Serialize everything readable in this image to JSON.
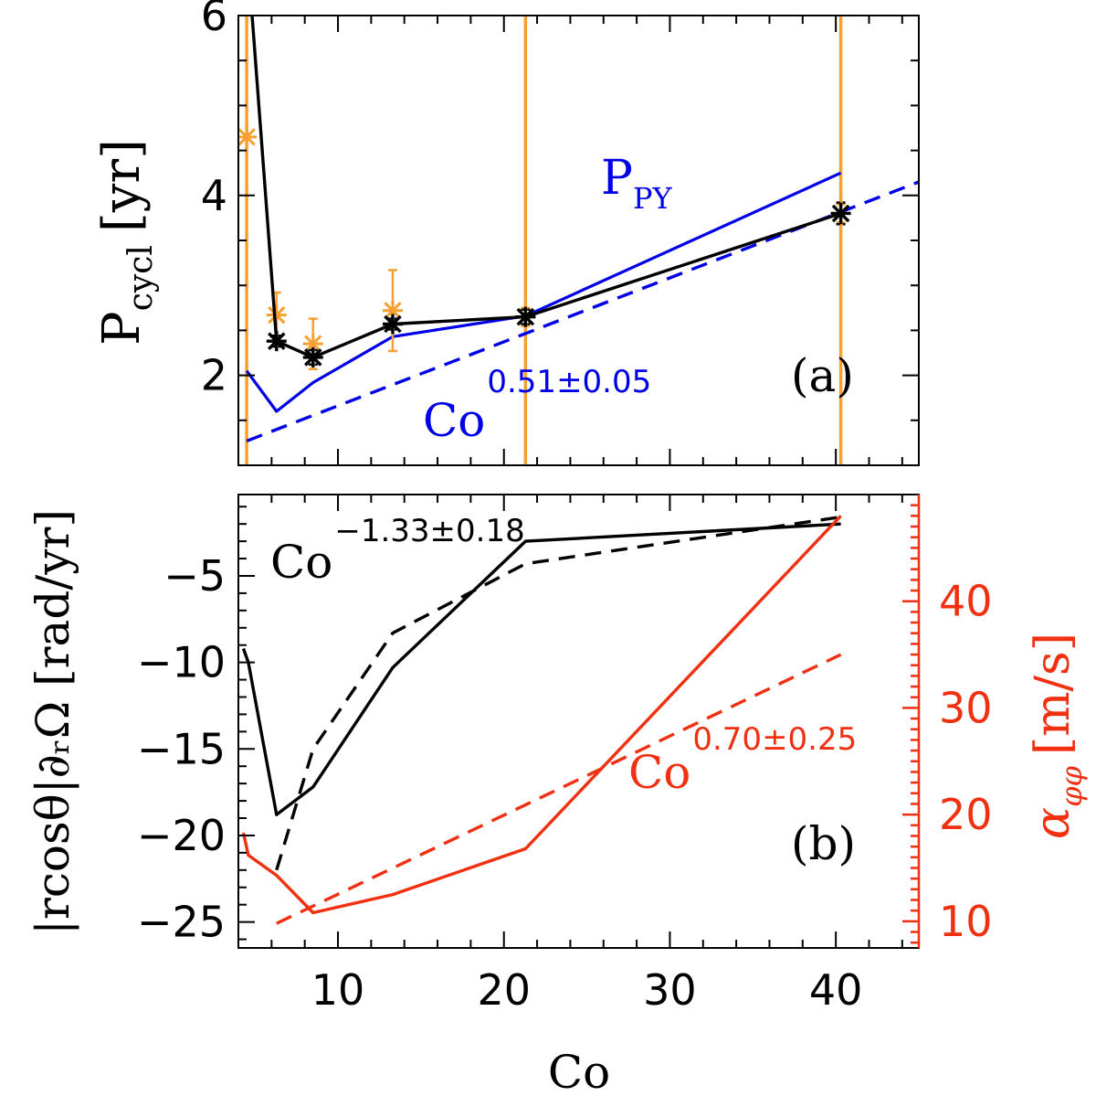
{
  "chart_data": [
    {
      "panel_label": "(a)",
      "type": "line",
      "ylabel_main": "P",
      "ylabel_sub": "cycl",
      "ylabel_unit": "[yr]",
      "xlim": [
        4,
        45
      ],
      "ylim": [
        1.0,
        6.0
      ],
      "yticks": [
        2,
        4,
        6
      ],
      "colors": {
        "black": "#000000",
        "blue": "#0000e6",
        "orange": "#f5a030"
      },
      "series": [
        {
          "name": "P_cycl (black)",
          "style": "solid-stars",
          "color": "#000000",
          "x": [
            4.5,
            6.3,
            8.5,
            13.3,
            21.3,
            40.3
          ],
          "y": [
            6.8,
            2.38,
            2.2,
            2.57,
            2.65,
            3.8
          ],
          "err": [
            0,
            0.06,
            0.08,
            0.06,
            0.08,
            0.12
          ],
          "markers_from_index": 1
        },
        {
          "name": "P_PY",
          "style": "solid",
          "color": "#0000e6",
          "x": [
            4.5,
            6.3,
            8.5,
            13.3,
            21.3,
            40.3
          ],
          "y": [
            2.05,
            1.6,
            1.92,
            2.43,
            2.66,
            4.25
          ]
        },
        {
          "name": "Co^0.51 fit",
          "style": "dashed",
          "color": "#0000e6",
          "x": [
            4.5,
            45
          ],
          "y": [
            1.27,
            4.15
          ]
        },
        {
          "name": "orange points",
          "style": "stars",
          "color": "#f5a030",
          "x": [
            4.5,
            6.3,
            8.5,
            13.3,
            21.3,
            40.3
          ],
          "y": [
            4.65,
            2.67,
            2.35,
            2.72,
            2.65,
            3.8
          ],
          "err": [
            0,
            0.25,
            0.28,
            0.45,
            0.1,
            0.1
          ]
        }
      ],
      "vertical_lines": {
        "color": "#f5a030",
        "x": [
          4.5,
          21.3,
          40.3
        ]
      },
      "annotations": [
        {
          "id": "ppy",
          "main": "P",
          "sub": "PY",
          "color": "#0000e6"
        },
        {
          "id": "fit_a",
          "base": "Co",
          "exponent": "0.51±0.05",
          "color": "#0000e6"
        }
      ]
    },
    {
      "panel_label": "(b)",
      "type": "line",
      "xlabel": "Co",
      "ylabel_left": "|rcosθ|∂ᵣΩ [rad/yr]",
      "ylabel_right_main": "α",
      "ylabel_right_sub": "φφ",
      "ylabel_right_unit": "[m/s]",
      "xlim": [
        4,
        45
      ],
      "xticks": [
        10,
        20,
        30,
        40
      ],
      "ylim_left": [
        -26.5,
        -0.3
      ],
      "yticks_left": [
        -5,
        -10,
        -15,
        -20,
        -25
      ],
      "ylim_right": [
        7.5,
        50
      ],
      "yticks_right": [
        10,
        20,
        30,
        40
      ],
      "colors": {
        "black": "#000000",
        "red": "#f03010"
      },
      "series": [
        {
          "name": "|rcosθ|∂rΩ",
          "axis": "left",
          "style": "solid",
          "color": "#000000",
          "x": [
            4.3,
            4.6,
            6.3,
            8.5,
            13.3,
            21.3,
            40.3
          ],
          "y": [
            -9.2,
            -10.0,
            -18.8,
            -17.2,
            -10.3,
            -3.0,
            -2.0
          ]
        },
        {
          "name": "Co^-1.33 fit",
          "axis": "left",
          "style": "dashed",
          "color": "#000000",
          "x": [
            6.3,
            8.5,
            13.3,
            21.3,
            40.3
          ],
          "y": [
            -22.0,
            -15.0,
            -8.3,
            -4.3,
            -1.6
          ]
        },
        {
          "name": "αφφ",
          "axis": "right",
          "style": "solid",
          "color": "#f03010",
          "x": [
            4.3,
            4.6,
            6.3,
            8.5,
            13.3,
            21.3,
            40.3
          ],
          "y": [
            18.3,
            16.2,
            14.3,
            10.8,
            12.5,
            16.8,
            48.0
          ]
        },
        {
          "name": "Co^0.70 fit",
          "axis": "right",
          "style": "dashed",
          "color": "#f03010",
          "x": [
            6.3,
            40.3
          ],
          "y": [
            9.8,
            35.0
          ]
        }
      ],
      "annotations": [
        {
          "id": "fit_b_black",
          "base": "Co",
          "exponent": "−1.33±0.18",
          "color": "#000000"
        },
        {
          "id": "fit_b_red",
          "base": "Co",
          "exponent": "0.70±0.25",
          "color": "#f03010"
        }
      ]
    }
  ]
}
